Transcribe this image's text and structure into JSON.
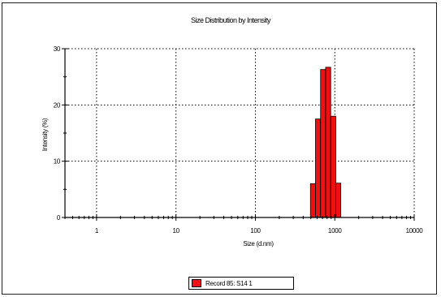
{
  "chart_data": {
    "type": "bar",
    "title": "Size Distribution by Intensity",
    "xlabel": "Size (d.nm)",
    "ylabel": "Intensity (%)",
    "x_scale": "log",
    "xlim": [
      0.4,
      10000
    ],
    "ylim": [
      0,
      30
    ],
    "x_ticks": [
      "1",
      "10",
      "100",
      "1000",
      "10000"
    ],
    "y_ticks": [
      "0",
      "10",
      "20",
      "30"
    ],
    "grid": true,
    "legend_position": "bottom-center",
    "series": [
      {
        "name": "Record 85: S14 1",
        "color": "#ee1111",
        "bins": [
          {
            "x": 531.2,
            "y": 6.0
          },
          {
            "x": 615.1,
            "y": 17.5
          },
          {
            "x": 712.4,
            "y": 26.3
          },
          {
            "x": 825.0,
            "y": 26.7
          },
          {
            "x": 955.4,
            "y": 18.0
          },
          {
            "x": 1106.0,
            "y": 6.1
          }
        ]
      }
    ]
  }
}
